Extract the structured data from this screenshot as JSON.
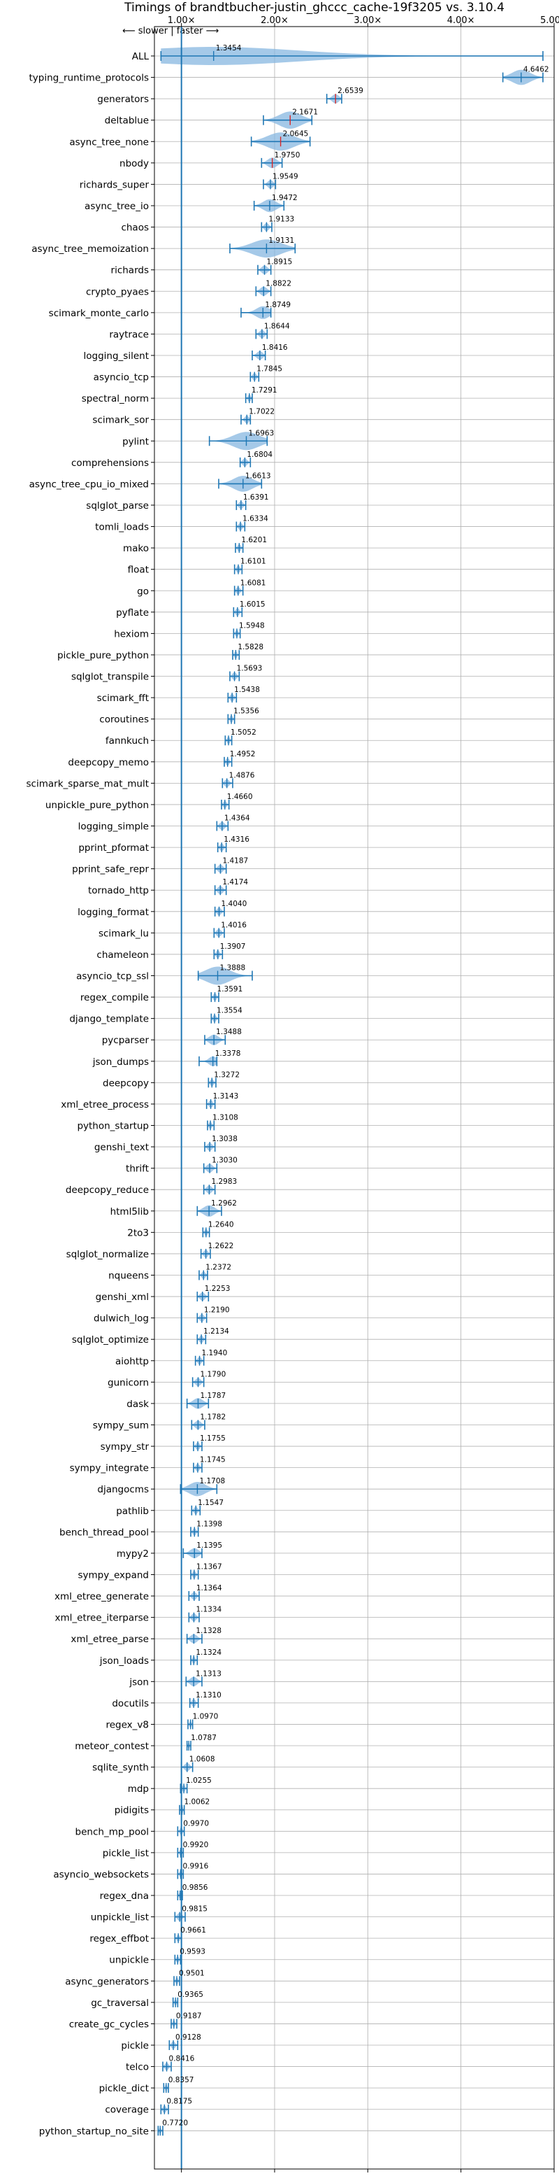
{
  "chart_data": {
    "type": "violin",
    "title": "Timings of brandtbucher-justin_ghccc_cache-19f3205 vs. 3.10.4",
    "annotation": "⟵ slower | faster ⟶",
    "x_ticks": [
      "1.00×",
      "2.00×",
      "3.00×",
      "4.00×",
      "5.00×"
    ],
    "x_tick_values": [
      1,
      2,
      3,
      4,
      5
    ],
    "xlim": [
      0.71,
      5.0
    ],
    "reference_line": 1.0,
    "grid": true,
    "colors": {
      "violin": "#87b7e0",
      "line": "#1f77b4",
      "median": "#d62728",
      "refline": "#1f77b4"
    },
    "categories": [
      "ALL",
      "typing_runtime_protocols",
      "generators",
      "deltablue",
      "async_tree_none",
      "nbody",
      "richards_super",
      "async_tree_io",
      "chaos",
      "async_tree_memoization",
      "richards",
      "crypto_pyaes",
      "scimark_monte_carlo",
      "raytrace",
      "logging_silent",
      "asyncio_tcp",
      "spectral_norm",
      "scimark_sor",
      "pylint",
      "comprehensions",
      "async_tree_cpu_io_mixed",
      "sqlglot_parse",
      "tomli_loads",
      "mako",
      "float",
      "go",
      "pyflate",
      "hexiom",
      "pickle_pure_python",
      "sqlglot_transpile",
      "scimark_fft",
      "coroutines",
      "fannkuch",
      "deepcopy_memo",
      "scimark_sparse_mat_mult",
      "unpickle_pure_python",
      "logging_simple",
      "pprint_pformat",
      "pprint_safe_repr",
      "tornado_http",
      "logging_format",
      "scimark_lu",
      "chameleon",
      "asyncio_tcp_ssl",
      "regex_compile",
      "django_template",
      "pycparser",
      "json_dumps",
      "deepcopy",
      "xml_etree_process",
      "python_startup",
      "genshi_text",
      "thrift",
      "deepcopy_reduce",
      "html5lib",
      "2to3",
      "sqlglot_normalize",
      "nqueens",
      "genshi_xml",
      "dulwich_log",
      "sqlglot_optimize",
      "aiohttp",
      "gunicorn",
      "dask",
      "sympy_sum",
      "sympy_str",
      "sympy_integrate",
      "djangocms",
      "pathlib",
      "bench_thread_pool",
      "mypy2",
      "sympy_expand",
      "xml_etree_generate",
      "xml_etree_iterparse",
      "xml_etree_parse",
      "json_loads",
      "json",
      "docutils",
      "regex_v8",
      "meteor_contest",
      "sqlite_synth",
      "mdp",
      "pidigits",
      "bench_mp_pool",
      "pickle_list",
      "asyncio_websockets",
      "regex_dna",
      "unpickle_list",
      "regex_effbot",
      "unpickle",
      "async_generators",
      "gc_traversal",
      "create_gc_cycles",
      "pickle",
      "telco",
      "pickle_dict",
      "coverage",
      "python_startup_no_site"
    ],
    "values": [
      1.3454,
      4.6462,
      2.6539,
      2.1671,
      2.0645,
      1.975,
      1.9549,
      1.9472,
      1.9133,
      1.9131,
      1.8915,
      1.8822,
      1.8749,
      1.8644,
      1.8416,
      1.7845,
      1.7291,
      1.7022,
      1.6963,
      1.6804,
      1.6613,
      1.6391,
      1.6334,
      1.6201,
      1.6101,
      1.6081,
      1.6015,
      1.5948,
      1.5828,
      1.5693,
      1.5438,
      1.5356,
      1.5052,
      1.4952,
      1.4876,
      1.466,
      1.4364,
      1.4316,
      1.4187,
      1.4174,
      1.404,
      1.4016,
      1.3907,
      1.3888,
      1.3591,
      1.3554,
      1.3488,
      1.3378,
      1.3272,
      1.3143,
      1.3108,
      1.3038,
      1.303,
      1.2983,
      1.2962,
      1.264,
      1.2622,
      1.2372,
      1.2253,
      1.219,
      1.2134,
      1.194,
      1.179,
      1.1787,
      1.1782,
      1.1755,
      1.1745,
      1.1708,
      1.1547,
      1.1398,
      1.1395,
      1.1367,
      1.1364,
      1.1334,
      1.1328,
      1.1324,
      1.1313,
      1.131,
      1.097,
      1.0787,
      1.0608,
      1.0255,
      1.0062,
      0.997,
      0.992,
      0.9916,
      0.9856,
      0.9815,
      0.9661,
      0.9593,
      0.9501,
      0.9365,
      0.9187,
      0.9128,
      0.8416,
      0.8357,
      0.8175,
      0.772
    ],
    "labels": [
      "1.3454",
      "4.6462",
      "2.6539",
      "2.1671",
      "2.0645",
      "1.9750",
      "1.9549",
      "1.9472",
      "1.9133",
      "1.9131",
      "1.8915",
      "1.8822",
      "1.8749",
      "1.8644",
      "1.8416",
      "1.7845",
      "1.7291",
      "1.7022",
      "1.6963",
      "1.6804",
      "1.6613",
      "1.6391",
      "1.6334",
      "1.6201",
      "1.6101",
      "1.6081",
      "1.6015",
      "1.5948",
      "1.5828",
      "1.5693",
      "1.5438",
      "1.5356",
      "1.5052",
      "1.4952",
      "1.4876",
      "1.4660",
      "1.4364",
      "1.4316",
      "1.4187",
      "1.4174",
      "1.4040",
      "1.4016",
      "1.3907",
      "1.3888",
      "1.3591",
      "1.3554",
      "1.3488",
      "1.3378",
      "1.3272",
      "1.3143",
      "1.3108",
      "1.3038",
      "1.3030",
      "1.2983",
      "1.2962",
      "1.2640",
      "1.2622",
      "1.2372",
      "1.2253",
      "1.2190",
      "1.2134",
      "1.1940",
      "1.1790",
      "1.1787",
      "1.1782",
      "1.1755",
      "1.1745",
      "1.1708",
      "1.1547",
      "1.1398",
      "1.1395",
      "1.1367",
      "1.1364",
      "1.1334",
      "1.1328",
      "1.1324",
      "1.1313",
      "1.1310",
      "1.0970",
      "1.0787",
      "1.0608",
      "1.0255",
      "1.0062",
      "0.9970",
      "0.9920",
      "0.9916",
      "0.9856",
      "0.9815",
      "0.9661",
      "0.9593",
      "0.9501",
      "0.9365",
      "0.9187",
      "0.9128",
      "0.8416",
      "0.8357",
      "0.8175",
      "0.7720"
    ],
    "ranges": [
      [
        0.78,
        4.88
      ],
      [
        4.45,
        4.88
      ],
      [
        2.56,
        2.72
      ],
      [
        1.88,
        2.4
      ],
      [
        1.75,
        2.38
      ],
      [
        1.86,
        2.08
      ],
      [
        1.88,
        2.01
      ],
      [
        1.78,
        2.1
      ],
      [
        1.86,
        1.97
      ],
      [
        1.52,
        2.22
      ],
      [
        1.82,
        1.96
      ],
      [
        1.8,
        1.96
      ],
      [
        1.64,
        1.96
      ],
      [
        1.8,
        1.92
      ],
      [
        1.76,
        1.9
      ],
      [
        1.74,
        1.83
      ],
      [
        1.69,
        1.76
      ],
      [
        1.64,
        1.74
      ],
      [
        1.3,
        1.92
      ],
      [
        1.63,
        1.74
      ],
      [
        1.4,
        1.86
      ],
      [
        1.59,
        1.69
      ],
      [
        1.59,
        1.68
      ],
      [
        1.58,
        1.66
      ],
      [
        1.57,
        1.65
      ],
      [
        1.57,
        1.66
      ],
      [
        1.56,
        1.65
      ],
      [
        1.56,
        1.63
      ],
      [
        1.55,
        1.62
      ],
      [
        1.52,
        1.62
      ],
      [
        1.5,
        1.59
      ],
      [
        1.5,
        1.57
      ],
      [
        1.47,
        1.54
      ],
      [
        1.46,
        1.54
      ],
      [
        1.44,
        1.55
      ],
      [
        1.43,
        1.51
      ],
      [
        1.38,
        1.5
      ],
      [
        1.39,
        1.48
      ],
      [
        1.36,
        1.48
      ],
      [
        1.36,
        1.48
      ],
      [
        1.36,
        1.46
      ],
      [
        1.35,
        1.46
      ],
      [
        1.35,
        1.44
      ],
      [
        1.18,
        1.76
      ],
      [
        1.32,
        1.4
      ],
      [
        1.32,
        1.4
      ],
      [
        1.25,
        1.47
      ],
      [
        1.19,
        1.38
      ],
      [
        1.29,
        1.37
      ],
      [
        1.27,
        1.36
      ],
      [
        1.28,
        1.35
      ],
      [
        1.25,
        1.36
      ],
      [
        1.24,
        1.38
      ],
      [
        1.24,
        1.36
      ],
      [
        1.17,
        1.43
      ],
      [
        1.23,
        1.3
      ],
      [
        1.21,
        1.31
      ],
      [
        1.19,
        1.28
      ],
      [
        1.17,
        1.29
      ],
      [
        1.17,
        1.27
      ],
      [
        1.17,
        1.26
      ],
      [
        1.15,
        1.24
      ],
      [
        1.12,
        1.24
      ],
      [
        1.06,
        1.29
      ],
      [
        1.11,
        1.25
      ],
      [
        1.13,
        1.22
      ],
      [
        1.13,
        1.22
      ],
      [
        0.99,
        1.38
      ],
      [
        1.11,
        1.2
      ],
      [
        1.1,
        1.18
      ],
      [
        1.02,
        1.22
      ],
      [
        1.1,
        1.18
      ],
      [
        1.08,
        1.19
      ],
      [
        1.08,
        1.19
      ],
      [
        1.06,
        1.22
      ],
      [
        1.1,
        1.17
      ],
      [
        1.05,
        1.22
      ],
      [
        1.09,
        1.18
      ],
      [
        1.07,
        1.12
      ],
      [
        1.06,
        1.1
      ],
      [
        1.0,
        1.12
      ],
      [
        0.99,
        1.06
      ],
      [
        0.98,
        1.03
      ],
      [
        0.96,
        1.03
      ],
      [
        0.96,
        1.02
      ],
      [
        0.96,
        1.02
      ],
      [
        0.96,
        1.01
      ],
      [
        0.93,
        1.04
      ],
      [
        0.93,
        1.0
      ],
      [
        0.93,
        0.99
      ],
      [
        0.92,
        0.98
      ],
      [
        0.91,
        0.96
      ],
      [
        0.89,
        0.95
      ],
      [
        0.87,
        0.96
      ],
      [
        0.8,
        0.89
      ],
      [
        0.81,
        0.86
      ],
      [
        0.78,
        0.86
      ],
      [
        0.75,
        0.8
      ]
    ]
  }
}
